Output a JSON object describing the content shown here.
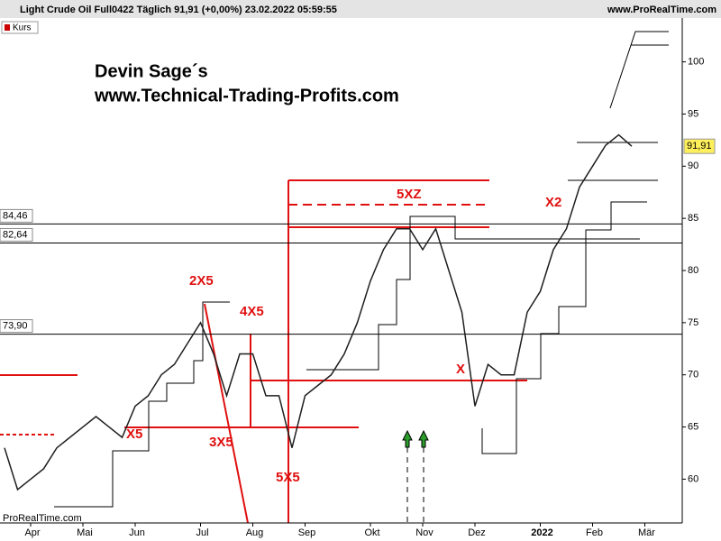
{
  "chart_data": {
    "type": "line",
    "title": "Light Crude Oil Full0422 Täglich 91,91 (+0,00%) 23.02.2022 05:59:55",
    "source": "www.ProRealTime.com",
    "footer": "ProRealTime.com",
    "legend": "Kurs",
    "headline": [
      "Devin Sage´s",
      "www.Technical-Trading-Profits.com"
    ],
    "categories": [
      null,
      null,
      "Apr",
      null,
      null,
      null,
      "Mai",
      null,
      null,
      null,
      "Jun",
      null,
      null,
      null,
      null,
      "Jul",
      null,
      null,
      null,
      "Aug",
      null,
      null,
      null,
      "Sep",
      null,
      null,
      null,
      null,
      "Okt",
      null,
      null,
      null,
      "Nov",
      null,
      null,
      null,
      "Dez",
      null,
      null,
      null,
      null,
      "2022",
      null,
      null,
      null,
      "Feb",
      null,
      null,
      null,
      "Mär"
    ],
    "series": [
      {
        "name": "Kurs",
        "color": "#1e1e1e",
        "values": [
          63,
          59,
          60,
          61,
          63,
          64,
          65,
          66,
          65,
          64,
          67,
          68,
          70,
          71,
          73,
          75,
          72,
          68,
          72,
          72,
          68,
          68,
          63,
          68,
          69,
          70,
          72,
          75,
          79,
          82,
          84,
          84,
          82,
          84,
          80,
          76,
          67,
          71,
          70,
          70,
          76,
          78,
          82,
          84,
          88,
          90,
          92,
          93,
          91.91,
          null
        ]
      }
    ],
    "last": {
      "value": 91.91,
      "label": "91,91"
    },
    "levels": [
      {
        "value": 84.46,
        "label": "84,46"
      },
      {
        "value": 82.64,
        "label": "82,64"
      },
      {
        "value": 73.9,
        "label": "73,90"
      }
    ],
    "annotations": [
      "2X5",
      "4X5",
      "3X5",
      "5X5",
      "5XZ",
      "X",
      "X2",
      "X5"
    ],
    "ylim": [
      55.8,
      104.2
    ],
    "yticks": [
      60,
      65,
      70,
      75,
      80,
      85,
      90,
      95,
      100
    ],
    "grid": false
  }
}
